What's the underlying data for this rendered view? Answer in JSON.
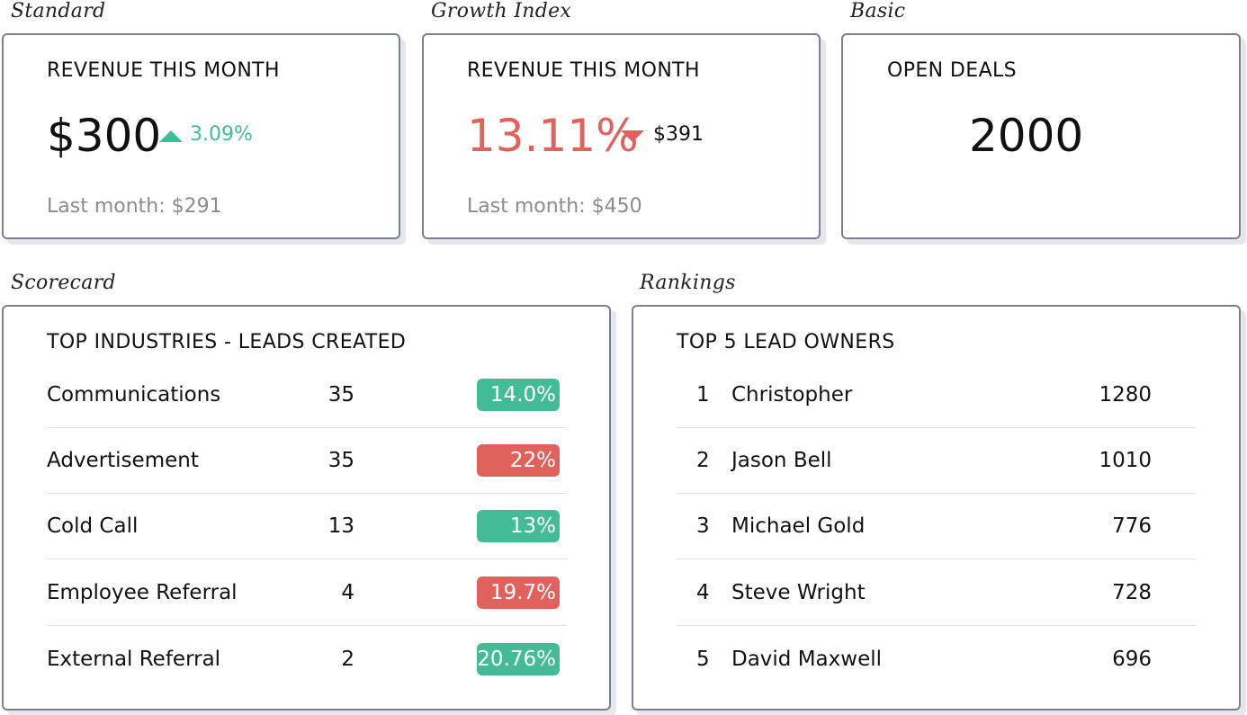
{
  "colors": {
    "green": "#43bc96",
    "red": "#e0625c",
    "muted": "#8c8c8c",
    "border": "#7a8092"
  },
  "captions": {
    "standard": "Standard",
    "growth": "Growth Index",
    "basic": "Basic",
    "scorecard": "Scorecard",
    "rankings": "Rankings"
  },
  "standard": {
    "title": "REVENUE THIS MONTH",
    "value": "$300",
    "delta": "3.09%",
    "trend": "up",
    "last_month": "Last month: $291"
  },
  "growth": {
    "title": "REVENUE THIS MONTH",
    "value": "13.11%",
    "delta": "$391",
    "trend": "down",
    "last_month": "Last month: $450"
  },
  "basic": {
    "title": "OPEN DEALS",
    "value": "2000"
  },
  "scorecard": {
    "title": "TOP INDUSTRIES - LEADS CREATED",
    "rows": [
      {
        "name": "Communications",
        "count": "35",
        "pct": "14.0%",
        "status": "green"
      },
      {
        "name": "Advertisement",
        "count": "35",
        "pct": "22%",
        "status": "red"
      },
      {
        "name": "Cold Call",
        "count": "13",
        "pct": "13%",
        "status": "green"
      },
      {
        "name": "Employee Referral",
        "count": "4",
        "pct": "19.7%",
        "status": "red"
      },
      {
        "name": "External Referral",
        "count": "2",
        "pct": "20.76%",
        "status": "green"
      }
    ]
  },
  "rankings": {
    "title": "TOP 5 LEAD OWNERS",
    "rows": [
      {
        "rank": "1",
        "name": "Christopher",
        "value": "1280"
      },
      {
        "rank": "2",
        "name": "Jason Bell",
        "value": "1010"
      },
      {
        "rank": "3",
        "name": "Michael Gold",
        "value": "776"
      },
      {
        "rank": "4",
        "name": "Steve Wright",
        "value": "728"
      },
      {
        "rank": "5",
        "name": "David Maxwell",
        "value": "696"
      }
    ]
  }
}
